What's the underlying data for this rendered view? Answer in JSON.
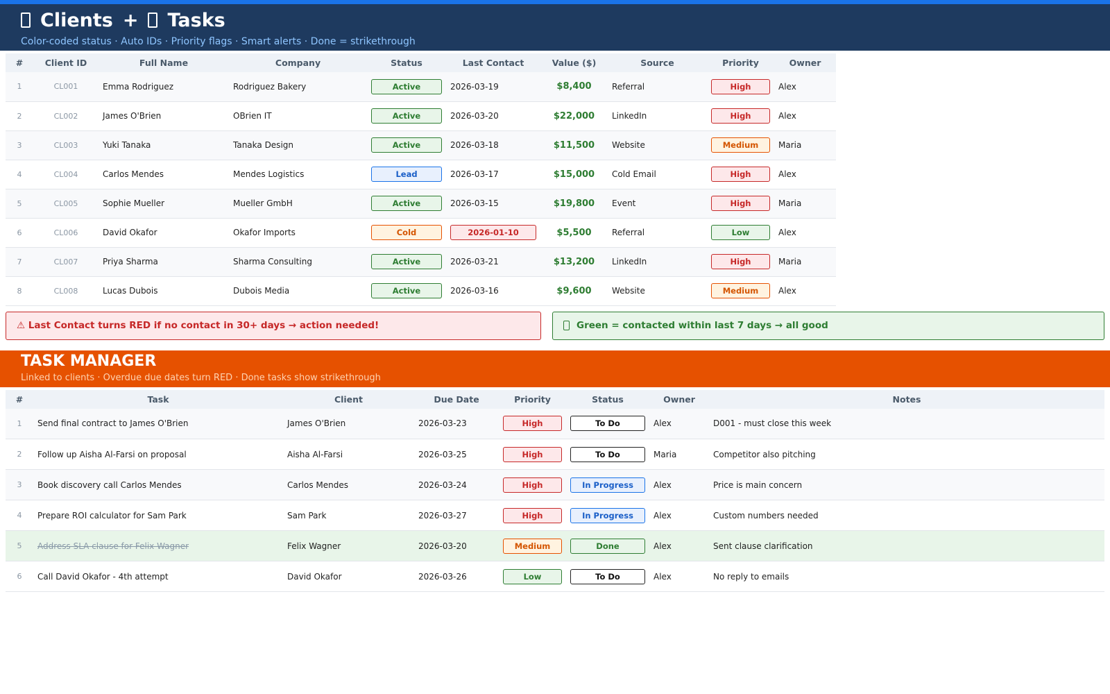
{
  "header": {
    "title": [
      "Clients",
      "+",
      "Tasks"
    ],
    "subtitle": "Color-coded status · Auto IDs · Priority flags · Smart alerts · Done = strikethrough"
  },
  "clients": {
    "columns": [
      "#",
      "Client ID",
      "Full Name",
      "Company",
      "Status",
      "Last Contact",
      "Value ($)",
      "Source",
      "Priority",
      "Owner"
    ],
    "rows": [
      {
        "num": 1,
        "id": "CL001",
        "name": "Emma Rodriguez",
        "company": "Rodriguez Bakery",
        "status": "Active",
        "last_contact": "2026-03-19",
        "value": "$8,400",
        "source": "Referral",
        "priority": "High",
        "owner": "Alex"
      },
      {
        "num": 2,
        "id": "CL002",
        "name": "James O'Brien",
        "company": "OBrien IT",
        "status": "Active",
        "last_contact": "2026-03-20",
        "value": "$22,000",
        "source": "LinkedIn",
        "priority": "High",
        "owner": "Alex"
      },
      {
        "num": 3,
        "id": "CL003",
        "name": "Yuki Tanaka",
        "company": "Tanaka Design",
        "status": "Active",
        "last_contact": "2026-03-18",
        "value": "$11,500",
        "source": "Website",
        "priority": "Medium",
        "owner": "Maria"
      },
      {
        "num": 4,
        "id": "CL004",
        "name": "Carlos Mendes",
        "company": "Mendes Logistics",
        "status": "Lead",
        "last_contact": "2026-03-17",
        "value": "$15,000",
        "source": "Cold Email",
        "priority": "High",
        "owner": "Alex"
      },
      {
        "num": 5,
        "id": "CL005",
        "name": "Sophie Mueller",
        "company": "Mueller GmbH",
        "status": "Active",
        "last_contact": "2026-03-15",
        "value": "$19,800",
        "source": "Event",
        "priority": "High",
        "owner": "Maria"
      },
      {
        "num": 6,
        "id": "CL006",
        "name": "David Okafor",
        "company": "Okafor Imports",
        "status": "Cold",
        "last_contact": "2026-01-10",
        "contact_color": "red",
        "value": "$5,500",
        "source": "Referral",
        "priority": "Low",
        "owner": "Alex"
      },
      {
        "num": 7,
        "id": "CL007",
        "name": "Priya Sharma",
        "company": "Sharma Consulting",
        "status": "Active",
        "last_contact": "2026-03-21",
        "value": "$13,200",
        "source": "LinkedIn",
        "priority": "High",
        "owner": "Maria"
      },
      {
        "num": 8,
        "id": "CL008",
        "name": "Lucas Dubois",
        "company": "Dubois Media",
        "status": "Active",
        "last_contact": "2026-03-16",
        "value": "$9,600",
        "source": "Website",
        "priority": "Medium",
        "owner": "Alex"
      }
    ]
  },
  "alerts": {
    "red": "⚠  Last Contact turns RED if no contact in 30+ days  →  action needed!",
    "green": "Green = contacted within last 7 days  →  all good"
  },
  "tasks": {
    "title": "TASK MANAGER",
    "subtitle": "Linked to clients · Overdue due dates turn RED · Done tasks show strikethrough",
    "columns": [
      "#",
      "Task",
      "Client",
      "Due Date",
      "Priority",
      "Status",
      "Owner",
      "Notes"
    ],
    "rows": [
      {
        "num": 1,
        "task": "Send final contract to James O'Brien",
        "client": "James O'Brien",
        "due": "2026-03-23",
        "priority": "High",
        "status": "To Do",
        "owner": "Alex",
        "notes": "D001 - must close this week"
      },
      {
        "num": 2,
        "task": "Follow up Aisha Al-Farsi on proposal",
        "client": "Aisha Al-Farsi",
        "due": "2026-03-25",
        "priority": "High",
        "status": "To Do",
        "owner": "Maria",
        "notes": "Competitor also pitching"
      },
      {
        "num": 3,
        "task": "Book discovery call Carlos Mendes",
        "client": "Carlos Mendes",
        "due": "2026-03-24",
        "priority": "High",
        "status": "In Progress",
        "owner": "Alex",
        "notes": "Price is main concern"
      },
      {
        "num": 4,
        "task": "Prepare ROI calculator for Sam Park",
        "client": "Sam Park",
        "due": "2026-03-27",
        "priority": "High",
        "status": "In Progress",
        "owner": "Alex",
        "notes": "Custom numbers needed"
      },
      {
        "num": 5,
        "task": "Address SLA clause for Felix Wagner",
        "client": "Felix Wagner",
        "due": "2026-03-20",
        "priority": "Medium",
        "status": "Done",
        "owner": "Alex",
        "notes": "Sent clause clarification"
      },
      {
        "num": 6,
        "task": "Call David Okafor - 4th attempt",
        "client": "David Okafor",
        "due": "2026-03-26",
        "priority": "Low",
        "status": "To Do",
        "owner": "Alex",
        "notes": "No reply to emails"
      }
    ]
  }
}
